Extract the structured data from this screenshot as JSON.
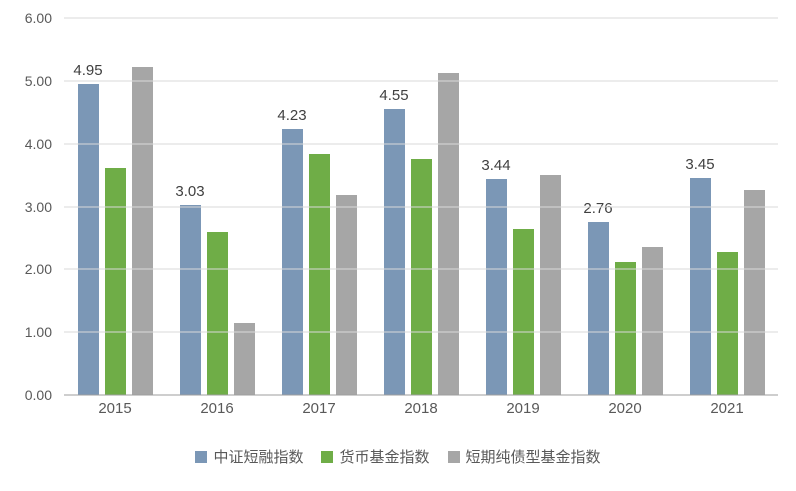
{
  "chart_data": {
    "type": "bar",
    "title": "",
    "xlabel": "",
    "ylabel": "",
    "categories": [
      "2015",
      "2016",
      "2017",
      "2018",
      "2019",
      "2020",
      "2021"
    ],
    "series": [
      {
        "name": "中证短融指数",
        "color": "#7b97b6",
        "values": [
          4.95,
          3.03,
          4.23,
          4.55,
          3.44,
          2.76,
          3.45
        ],
        "data_labels": [
          "4.95",
          "3.03",
          "4.23",
          "4.55",
          "3.44",
          "2.76",
          "3.45"
        ]
      },
      {
        "name": "货币基金指数",
        "color": "#6fad47",
        "values": [
          3.62,
          2.6,
          3.83,
          3.76,
          2.65,
          2.12,
          2.28
        ]
      },
      {
        "name": "短期纯债型基金指数",
        "color": "#a6a6a6",
        "values": [
          5.22,
          1.15,
          3.18,
          5.13,
          3.5,
          2.35,
          3.27
        ]
      }
    ],
    "ylim": [
      0,
      6
    ],
    "ytick_step": 1,
    "ytick_labels": [
      "0.00",
      "1.00",
      "2.00",
      "3.00",
      "4.00",
      "5.00",
      "6.00"
    ],
    "grid": true,
    "legend_position": "bottom"
  }
}
